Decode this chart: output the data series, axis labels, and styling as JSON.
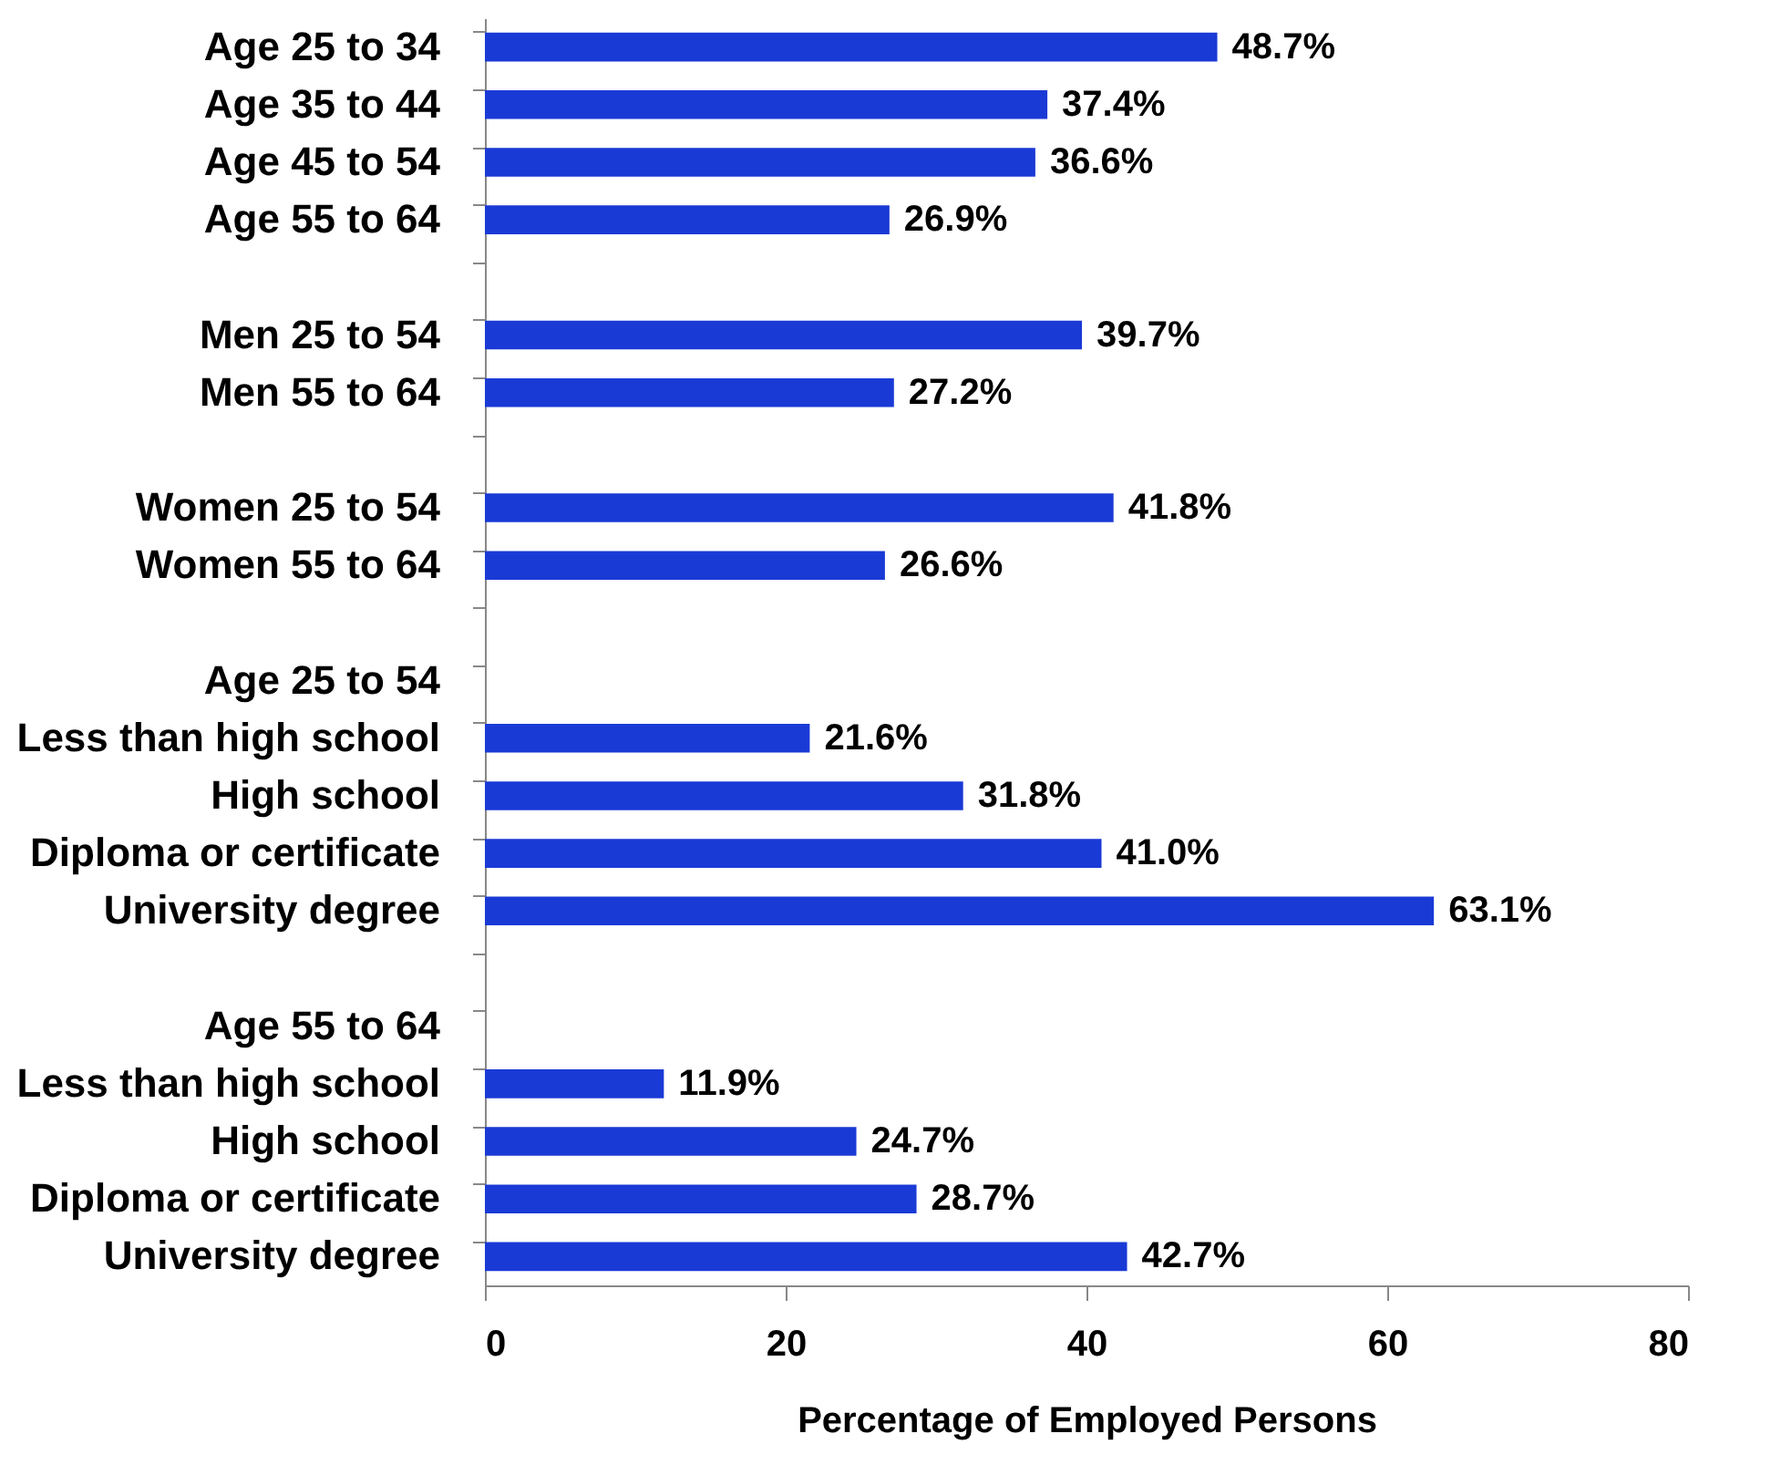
{
  "chart_data": {
    "type": "bar",
    "orientation": "horizontal",
    "xlabel": "Percentage of Employed Persons",
    "categories": [
      "Age 25 to 34",
      "Age 35 to 44",
      "Age 45 to 54",
      "Age 55 to 64",
      null,
      "Men 25 to 54",
      "Men 55 to 64",
      null,
      "Women 25 to 54",
      "Women 55 to 64",
      null,
      "Age 25 to 54",
      "Less than high school",
      "High school",
      "Diploma or certificate",
      "University degree",
      null,
      "Age 55 to 64",
      "Less than high school",
      "High school",
      "Diploma or certificate",
      "University degree"
    ],
    "values": [
      48.7,
      37.4,
      36.6,
      26.9,
      null,
      39.7,
      27.2,
      null,
      41.8,
      26.6,
      null,
      null,
      21.6,
      31.8,
      41.0,
      63.1,
      null,
      null,
      11.9,
      24.7,
      28.7,
      42.7
    ],
    "value_labels": [
      "48.7%",
      "37.4%",
      "36.6%",
      "26.9%",
      null,
      "39.7%",
      "27.2%",
      null,
      "41.8%",
      "26.6%",
      null,
      null,
      "21.6%",
      "31.8%",
      "41.0%",
      "63.1%",
      null,
      null,
      "11.9%",
      "24.7%",
      "28.7%",
      "42.7%"
    ],
    "color": "#1a3ad6",
    "xlim": [
      0,
      80
    ],
    "xticks": [
      0,
      20,
      40,
      60,
      80
    ],
    "grid": false
  }
}
